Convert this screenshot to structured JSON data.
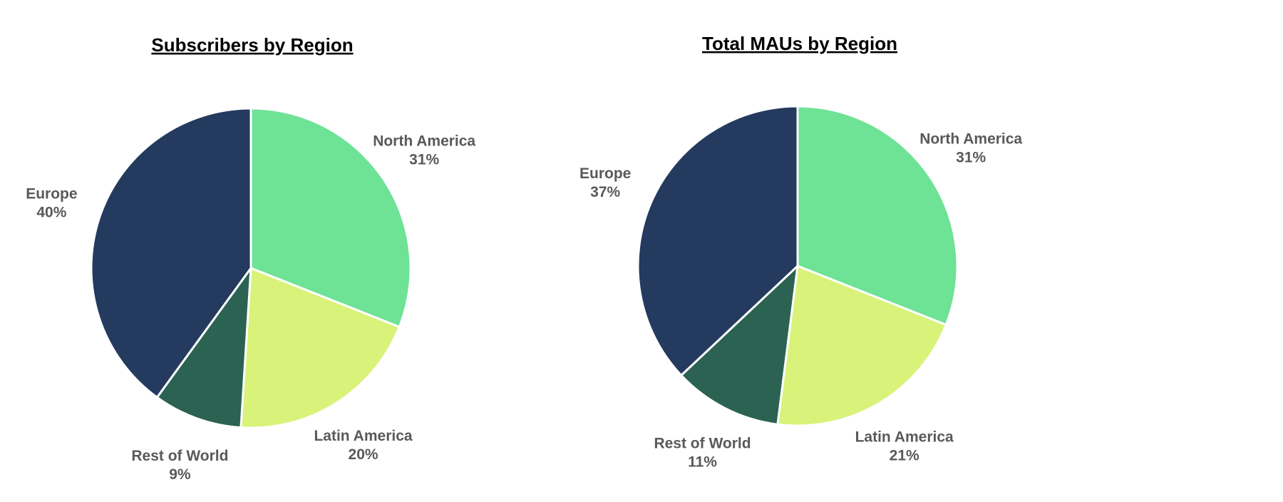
{
  "chart_data": [
    {
      "type": "pie",
      "title": "Subscribers by Region",
      "categories": [
        "North America",
        "Latin America",
        "Rest of World",
        "Europe"
      ],
      "values": [
        31,
        20,
        9,
        40
      ],
      "value_labels": [
        "31%",
        "20%",
        "9%",
        "40%"
      ],
      "colors": [
        "#6ee295",
        "#d9f27a",
        "#2b6251",
        "#243a5e"
      ]
    },
    {
      "type": "pie",
      "title": "Total MAUs by Region",
      "categories": [
        "North America",
        "Latin America",
        "Rest of World",
        "Europe"
      ],
      "values": [
        31,
        21,
        11,
        37
      ],
      "value_labels": [
        "31%",
        "21%",
        "11%",
        "37%"
      ],
      "colors": [
        "#6ee295",
        "#d9f27a",
        "#2b6251",
        "#243a5e"
      ]
    }
  ]
}
